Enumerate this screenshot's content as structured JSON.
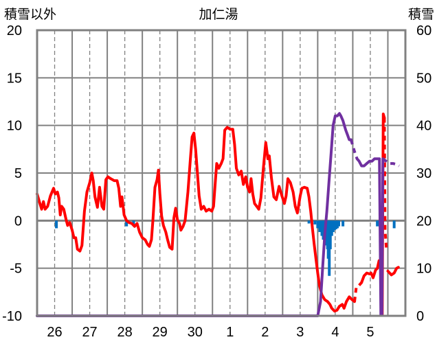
{
  "chart_data": {
    "type": "line",
    "title": "加仁湯",
    "left_axis_label": "積雪以外",
    "right_axis_label": "積雪",
    "left_ylim": [
      -10,
      20
    ],
    "left_yticks": [
      20,
      15,
      10,
      5,
      0,
      -5,
      -10
    ],
    "right_ylim": [
      0,
      60
    ],
    "right_yticks": [
      60,
      50,
      40,
      30,
      20,
      10,
      0
    ],
    "x_tick_labels": [
      "26",
      "27",
      "28",
      "29",
      "30",
      "1",
      "2",
      "3",
      "4",
      "5"
    ],
    "x_range": [
      0,
      10.5
    ],
    "x_tick_positions": [
      0.5,
      1.5,
      2.5,
      3.5,
      4.5,
      5.5,
      6.5,
      7.5,
      8.5,
      9.5
    ],
    "vertical_gridlines_at": [
      0.5,
      1.5,
      2.5,
      3.5,
      4.5,
      5.5,
      6.5,
      7.5,
      8.5,
      9.5
    ],
    "solid_verticals_at": [
      0,
      1,
      2,
      3,
      4,
      5,
      6,
      7,
      8,
      9,
      10
    ],
    "grid": true,
    "colors": {
      "temperature": "#ff0000",
      "snow_depth": "#7030a0",
      "precipitation": "#0070c0",
      "grid": "#808080",
      "zero_line": "#808080"
    },
    "series": [
      {
        "key": "temperature",
        "axis": "left",
        "style": "solid",
        "points": [
          [
            0.0,
            2.8
          ],
          [
            0.08,
            1.8
          ],
          [
            0.13,
            1.2
          ],
          [
            0.18,
            2.0
          ],
          [
            0.23,
            1.2
          ],
          [
            0.3,
            1.5
          ],
          [
            0.38,
            2.6
          ],
          [
            0.47,
            3.4
          ],
          [
            0.52,
            2.8
          ],
          [
            0.58,
            3.0
          ],
          [
            0.62,
            2.4
          ],
          [
            0.66,
            0.6
          ],
          [
            0.7,
            1.5
          ],
          [
            0.76,
            1.2
          ],
          [
            0.82,
            0.2
          ],
          [
            0.87,
            -0.5
          ],
          [
            0.93,
            -0.2
          ],
          [
            1.0,
            -1.0
          ],
          [
            1.05,
            -1.8
          ],
          [
            1.1,
            -1.8
          ],
          [
            1.15,
            -3.0
          ],
          [
            1.22,
            -3.2
          ],
          [
            1.28,
            -2.6
          ],
          [
            1.35,
            1.0
          ],
          [
            1.42,
            3.0
          ],
          [
            1.5,
            4.0
          ],
          [
            1.56,
            5.0
          ],
          [
            1.6,
            4.2
          ],
          [
            1.65,
            2.5
          ],
          [
            1.72,
            1.4
          ],
          [
            1.78,
            3.5
          ],
          [
            1.85,
            1.5
          ],
          [
            1.9,
            1.2
          ],
          [
            1.96,
            4.3
          ],
          [
            2.02,
            4.6
          ],
          [
            2.1,
            4.4
          ],
          [
            2.2,
            4.2
          ],
          [
            2.28,
            4.2
          ],
          [
            2.33,
            3.4
          ],
          [
            2.38,
            1.5
          ],
          [
            2.42,
            2.5
          ],
          [
            2.48,
            0.6
          ],
          [
            2.55,
            0.0
          ],
          [
            2.62,
            -0.2
          ],
          [
            2.7,
            -0.3
          ],
          [
            2.78,
            -0.6
          ],
          [
            2.85,
            -0.3
          ],
          [
            2.92,
            -1.2
          ],
          [
            3.0,
            -1.8
          ],
          [
            3.08,
            -2.0
          ],
          [
            3.15,
            -2.5
          ],
          [
            3.2,
            -2.7
          ],
          [
            3.26,
            -2.0
          ],
          [
            3.3,
            0.0
          ],
          [
            3.36,
            3.5
          ],
          [
            3.42,
            4.3
          ],
          [
            3.46,
            5.3
          ],
          [
            3.5,
            2.8
          ],
          [
            3.55,
            0.5
          ],
          [
            3.6,
            -0.5
          ],
          [
            3.67,
            -1.2
          ],
          [
            3.72,
            -2.0
          ],
          [
            3.78,
            -2.8
          ],
          [
            3.85,
            -3.0
          ],
          [
            3.9,
            0.3
          ],
          [
            3.95,
            1.3
          ],
          [
            4.0,
            0.1
          ],
          [
            4.06,
            -0.3
          ],
          [
            4.1,
            -1.0
          ],
          [
            4.16,
            -0.6
          ],
          [
            4.22,
            0.0
          ],
          [
            4.3,
            3.0
          ],
          [
            4.37,
            6.5
          ],
          [
            4.42,
            8.8
          ],
          [
            4.47,
            9.2
          ],
          [
            4.52,
            7.5
          ],
          [
            4.56,
            5.5
          ],
          [
            4.62,
            2.6
          ],
          [
            4.68,
            1.2
          ],
          [
            4.75,
            1.5
          ],
          [
            4.82,
            1.0
          ],
          [
            4.9,
            1.2
          ],
          [
            4.98,
            1.0
          ],
          [
            5.03,
            1.5
          ],
          [
            5.08,
            4.0
          ],
          [
            5.12,
            6.0
          ],
          [
            5.18,
            5.5
          ],
          [
            5.25,
            6.0
          ],
          [
            5.3,
            6.5
          ],
          [
            5.35,
            9.5
          ],
          [
            5.42,
            9.8
          ],
          [
            5.5,
            9.6
          ],
          [
            5.58,
            9.6
          ],
          [
            5.63,
            8.0
          ],
          [
            5.68,
            5.5
          ],
          [
            5.75,
            4.8
          ],
          [
            5.82,
            5.2
          ],
          [
            5.88,
            3.8
          ],
          [
            5.95,
            4.6
          ],
          [
            6.0,
            3.5
          ],
          [
            6.06,
            3.0
          ],
          [
            6.1,
            4.4
          ],
          [
            6.15,
            2.8
          ],
          [
            6.2,
            1.8
          ],
          [
            6.26,
            1.5
          ],
          [
            6.32,
            1.2
          ],
          [
            6.38,
            2.4
          ],
          [
            6.45,
            5.5
          ],
          [
            6.52,
            8.2
          ],
          [
            6.58,
            6.5
          ],
          [
            6.62,
            6.8
          ],
          [
            6.68,
            4.5
          ],
          [
            6.75,
            2.5
          ],
          [
            6.82,
            2.2
          ],
          [
            6.9,
            3.6
          ],
          [
            6.98,
            2.6
          ],
          [
            7.05,
            1.8
          ],
          [
            7.1,
            2.6
          ],
          [
            7.15,
            4.4
          ],
          [
            7.22,
            4.0
          ],
          [
            7.3,
            3.0
          ],
          [
            7.36,
            1.5
          ],
          [
            7.42,
            0.8
          ],
          [
            7.5,
            2.6
          ],
          [
            7.55,
            3.4
          ],
          [
            7.62,
            3.5
          ],
          [
            7.7,
            3.4
          ],
          [
            7.75,
            2.5
          ],
          [
            7.8,
            1.0
          ],
          [
            7.85,
            -0.8
          ],
          [
            7.9,
            -2.5
          ],
          [
            7.95,
            -4.0
          ],
          [
            8.0,
            -5.5
          ],
          [
            8.05,
            -6.8
          ],
          [
            8.12,
            -7.8
          ],
          [
            8.2,
            -8.3
          ],
          [
            8.28,
            -8.5
          ],
          [
            8.35,
            -8.8
          ],
          [
            8.4,
            -9.2
          ],
          [
            8.48,
            -9.5
          ],
          [
            8.55,
            -9.4
          ],
          [
            8.62,
            -9.0
          ],
          [
            8.7,
            -8.8
          ],
          [
            8.75,
            -9.2
          ],
          [
            8.82,
            -8.5
          ],
          [
            8.9,
            -8.0
          ],
          [
            8.98,
            -8.3
          ],
          [
            9.05,
            -8.5
          ]
        ]
      },
      {
        "key": "temperature",
        "axis": "left",
        "style": "dashed",
        "points": [
          [
            9.05,
            -8.5
          ],
          [
            9.1,
            -7.0
          ],
          [
            9.18,
            -6.8
          ],
          [
            9.25,
            -6.5
          ]
        ]
      },
      {
        "key": "temperature",
        "axis": "left",
        "style": "solid",
        "points": [
          [
            9.25,
            -6.5
          ],
          [
            9.32,
            -5.8
          ],
          [
            9.4,
            -5.5
          ],
          [
            9.48,
            -5.6
          ],
          [
            9.52,
            -5.5
          ],
          [
            9.58,
            -6.0
          ],
          [
            9.65,
            -5.2
          ],
          [
            9.7,
            -5.0
          ],
          [
            9.75,
            -4.2
          ],
          [
            9.8,
            -4.3
          ],
          [
            9.82,
            -9.5
          ],
          [
            9.84,
            -9.9
          ],
          [
            9.86,
            5.0
          ],
          [
            9.87,
            11.2
          ],
          [
            9.9,
            10.8
          ]
        ]
      },
      {
        "key": "temperature",
        "axis": "left",
        "style": "dashed",
        "points": [
          [
            9.9,
            10.8
          ],
          [
            9.92,
            -1.0
          ],
          [
            9.96,
            -3.0
          ]
        ]
      },
      {
        "key": "temperature",
        "axis": "left",
        "style": "solid",
        "points": [
          [
            10.0,
            -5.3
          ],
          [
            10.1,
            -5.7
          ],
          [
            10.18,
            -5.5
          ],
          [
            10.25,
            -5.0
          ],
          [
            10.3,
            -4.9
          ]
        ]
      },
      {
        "key": "snow_depth",
        "axis": "right",
        "style": "solid",
        "points": [
          [
            0.0,
            0.0
          ],
          [
            8.0,
            0.0
          ],
          [
            8.08,
            3.0
          ],
          [
            8.14,
            10.0
          ],
          [
            8.2,
            17.0
          ],
          [
            8.26,
            22.0
          ],
          [
            8.32,
            28.0
          ],
          [
            8.38,
            34.0
          ],
          [
            8.44,
            40.0
          ],
          [
            8.5,
            42.0
          ],
          [
            8.56,
            42.0
          ],
          [
            8.62,
            42.5
          ],
          [
            8.66,
            42.0
          ],
          [
            8.72,
            41.0
          ],
          [
            8.8,
            39.0
          ],
          [
            8.85,
            38.0
          ],
          [
            8.9,
            37.0
          ],
          [
            8.95,
            37.0
          ]
        ]
      },
      {
        "key": "snow_depth",
        "axis": "right",
        "style": "dashed",
        "points": [
          [
            8.95,
            37.0
          ],
          [
            9.05,
            34.5
          ],
          [
            9.12,
            33.0
          ],
          [
            9.18,
            32.5
          ]
        ]
      },
      {
        "key": "snow_depth",
        "axis": "right",
        "style": "solid",
        "points": [
          [
            9.18,
            32.5
          ],
          [
            9.25,
            31.5
          ],
          [
            9.32,
            31.5
          ],
          [
            9.4,
            32.0
          ],
          [
            9.48,
            32.5
          ],
          [
            9.55,
            32.5
          ],
          [
            9.62,
            33.0
          ],
          [
            9.7,
            33.0
          ],
          [
            9.76,
            33.0
          ],
          [
            9.8,
            0.2
          ],
          [
            9.83,
            0.2
          ],
          [
            9.86,
            33.0
          ]
        ]
      },
      {
        "key": "snow_depth",
        "axis": "right",
        "style": "dashed",
        "points": [
          [
            9.86,
            33.0
          ],
          [
            9.95,
            32.5
          ],
          [
            10.05,
            32.0
          ],
          [
            10.15,
            32.0
          ],
          [
            10.25,
            31.8
          ],
          [
            10.32,
            31.5
          ]
        ]
      }
    ],
    "precipitation_bars": {
      "axis": "left",
      "baseline": 0,
      "values": [
        [
          0.55,
          -0.8
        ],
        [
          2.55,
          -0.6
        ],
        [
          2.75,
          -0.4
        ],
        [
          7.75,
          -0.3
        ],
        [
          7.92,
          -0.4
        ],
        [
          8.0,
          -0.8
        ],
        [
          8.06,
          -1.2
        ],
        [
          8.12,
          -1.6
        ],
        [
          8.16,
          -2.0
        ],
        [
          8.2,
          -2.2
        ],
        [
          8.24,
          -2.6
        ],
        [
          8.28,
          -3.0
        ],
        [
          8.3,
          -4.0
        ],
        [
          8.33,
          -5.8
        ],
        [
          8.36,
          -3.0
        ],
        [
          8.4,
          -1.6
        ],
        [
          8.44,
          -1.2
        ],
        [
          8.48,
          -1.0
        ],
        [
          8.52,
          -0.9
        ],
        [
          8.56,
          -0.8
        ],
        [
          8.6,
          -0.6
        ],
        [
          8.72,
          -0.6
        ],
        [
          9.7,
          -0.6
        ],
        [
          9.85,
          -0.7
        ],
        [
          10.18,
          -0.8
        ]
      ]
    }
  }
}
